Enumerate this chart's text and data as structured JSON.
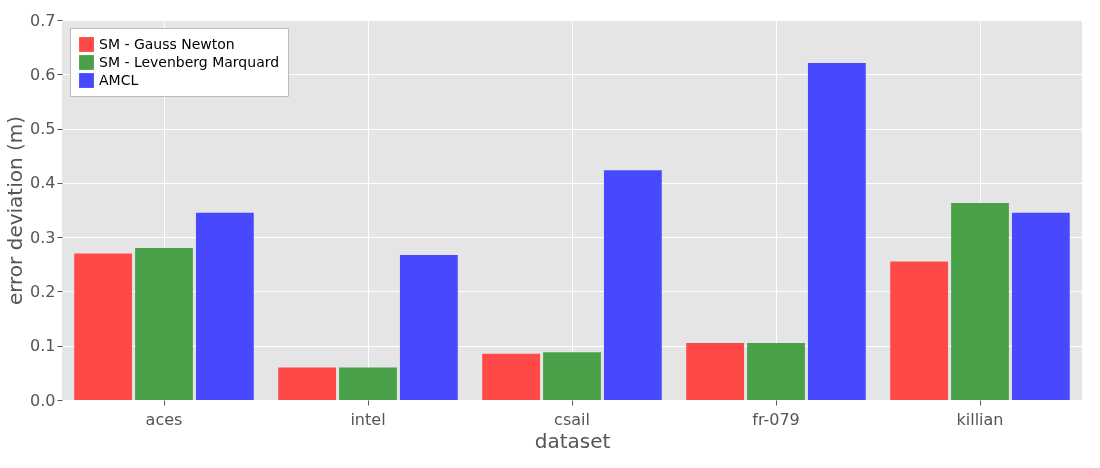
{
  "chart_data": {
    "type": "bar",
    "xlabel": "dataset",
    "ylabel": "error deviation (m)",
    "categories": [
      "aces",
      "intel",
      "csail",
      "fr-079",
      "killian"
    ],
    "series": [
      {
        "name": "SM - Gauss Newton",
        "color": "#ff4848",
        "values": [
          0.27,
          0.06,
          0.085,
          0.105,
          0.255
        ]
      },
      {
        "name": "SM - Levenberg Marquard",
        "color": "#48a048",
        "values": [
          0.28,
          0.06,
          0.088,
          0.105,
          0.363
        ]
      },
      {
        "name": "AMCL",
        "color": "#4848ff",
        "values": [
          0.345,
          0.267,
          0.423,
          0.621,
          0.345
        ]
      }
    ],
    "ylim": [
      0,
      0.7
    ],
    "yticks": [
      {
        "value": 0,
        "label": "0.0"
      },
      0.1,
      0.2,
      0.3,
      0.4,
      0.5,
      0.6,
      0.7
    ],
    "grid": true,
    "legend": "top left"
  }
}
